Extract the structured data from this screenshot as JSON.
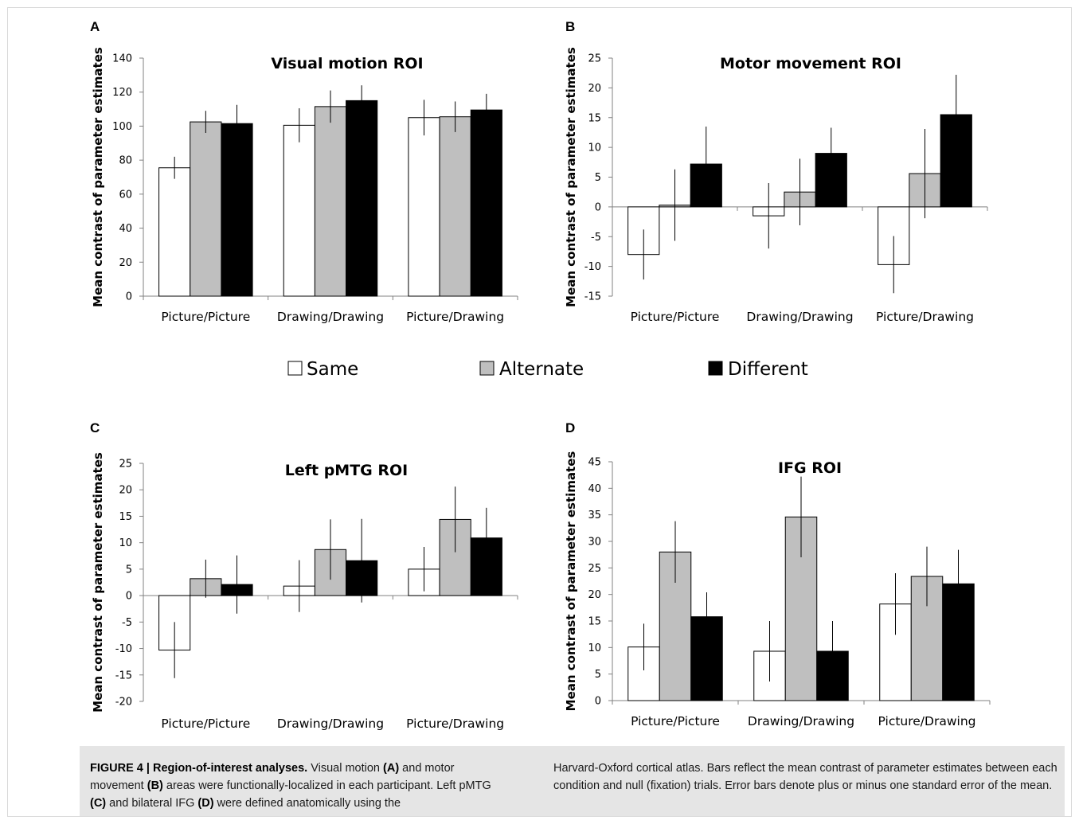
{
  "legend": {
    "items": [
      {
        "label": "Same",
        "color": "#ffffff"
      },
      {
        "label": "Alternate",
        "color": "#bfbfbf"
      },
      {
        "label": "Different",
        "color": "#000000"
      }
    ]
  },
  "chart_data": [
    {
      "panel": "A",
      "type": "bar",
      "title": "Visual motion ROI",
      "ylabel": "Mean contrast of parameter estimates",
      "xlabel": "",
      "ylim": [
        0,
        140
      ],
      "yticks": [
        0,
        20,
        40,
        60,
        80,
        100,
        120,
        140
      ],
      "categories": [
        "Picture/Picture",
        "Drawing/Drawing",
        "Picture/Drawing"
      ],
      "series": [
        {
          "name": "Same",
          "values": [
            75.5,
            100.5,
            105
          ],
          "errors": [
            6.5,
            10,
            10.5
          ]
        },
        {
          "name": "Alternate",
          "values": [
            102.5,
            111.5,
            105.5
          ],
          "errors": [
            6.5,
            9.5,
            9
          ]
        },
        {
          "name": "Different",
          "values": [
            101.5,
            115,
            109.5
          ],
          "errors": [
            11,
            9,
            9.5
          ]
        }
      ]
    },
    {
      "panel": "B",
      "type": "bar",
      "title": "Motor movement ROI",
      "ylabel": "Mean contrast of parameter estimates",
      "xlabel": "",
      "ylim": [
        -15,
        25
      ],
      "yticks": [
        -15,
        -10,
        -5,
        0,
        5,
        10,
        15,
        20,
        25
      ],
      "categories": [
        "Picture/Picture",
        "Drawing/Drawing",
        "Picture/Drawing"
      ],
      "series": [
        {
          "name": "Same",
          "values": [
            -8,
            -1.5,
            -9.7
          ],
          "errors": [
            4.2,
            5.5,
            4.8
          ]
        },
        {
          "name": "Alternate",
          "values": [
            0.3,
            2.5,
            5.6
          ],
          "errors": [
            6,
            5.6,
            7.5
          ]
        },
        {
          "name": "Different",
          "values": [
            7.2,
            9,
            15.5
          ],
          "errors": [
            6.3,
            4.3,
            6.7
          ]
        }
      ]
    },
    {
      "panel": "C",
      "type": "bar",
      "title": "Left pMTG ROI",
      "ylabel": "Mean contrast of parameter estimates",
      "xlabel": "",
      "ylim": [
        -20,
        25
      ],
      "yticks": [
        -20,
        -15,
        -10,
        -5,
        0,
        5,
        10,
        15,
        20,
        25
      ],
      "categories": [
        "Picture/Picture",
        "Drawing/Drawing",
        "Picture/Drawing"
      ],
      "series": [
        {
          "name": "Same",
          "values": [
            -10.3,
            1.8,
            5
          ],
          "errors": [
            5.3,
            4.9,
            4.2
          ]
        },
        {
          "name": "Alternate",
          "values": [
            3.2,
            8.7,
            14.4
          ],
          "errors": [
            3.6,
            5.7,
            6.2
          ]
        },
        {
          "name": "Different",
          "values": [
            2.1,
            6.6,
            10.9
          ],
          "errors": [
            5.5,
            7.9,
            5.7
          ]
        }
      ]
    },
    {
      "panel": "D",
      "type": "bar",
      "title": "IFG ROI",
      "ylabel": "Mean contrast of parameter estimates",
      "xlabel": "",
      "ylim": [
        0,
        45
      ],
      "yticks": [
        0,
        5,
        10,
        15,
        20,
        25,
        30,
        35,
        40,
        45
      ],
      "categories": [
        "Picture/Picture",
        "Drawing/Drawing",
        "Picture/Drawing"
      ],
      "series": [
        {
          "name": "Same",
          "values": [
            10.1,
            9.3,
            18.2
          ],
          "errors": [
            4.4,
            5.7,
            5.8
          ]
        },
        {
          "name": "Alternate",
          "values": [
            28,
            34.6,
            23.4
          ],
          "errors": [
            5.8,
            7.6,
            5.6
          ]
        },
        {
          "name": "Different",
          "values": [
            15.8,
            9.3,
            22
          ],
          "errors": [
            4.6,
            5.7,
            6.4
          ]
        }
      ]
    }
  ],
  "caption": {
    "figure_label": "FIGURE 4 | Region-of-interest analyses.",
    "part1": " Visual motion ",
    "ref_a": "(A)",
    "part2": " and motor movement ",
    "ref_b": "(B)",
    "part3": " areas were functionally-localized in each participant. Left pMTG ",
    "ref_c": "(C)",
    "part4": " and bilateral IFG ",
    "ref_d": "(D)",
    "part5": " were defined anatomically using the",
    "right_text": "Harvard-Oxford cortical atlas. Bars reflect the mean contrast of parameter estimates between each condition and null (fixation) trials. Error bars denote plus or minus one standard error of the mean."
  }
}
